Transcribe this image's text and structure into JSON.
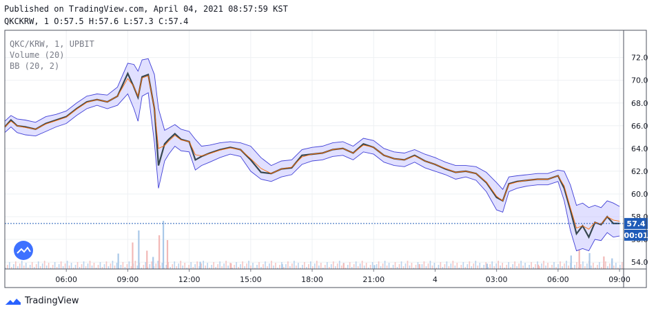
{
  "header": {
    "published_line": "Published on TradingView.com, April 04, 2021 08:57:59 KST",
    "symbol_line": "QKCKRW, 1 O:57.5 H:57.6 L:57.3 C:57.4"
  },
  "legend": [
    "QKC/KRW, 1, UPBIT",
    "Volume (20)",
    "BB (20, 2)"
  ],
  "brand": {
    "name": "TradingView",
    "icon": "tradingview-logo-icon"
  },
  "colors": {
    "up": "#26a69a",
    "down": "#ef5350",
    "candle_up": "#5b9bd5",
    "candle_down": "#c0504d",
    "band_fill": "#c9c6ff",
    "band_line": "#3f3fd6",
    "basis": "#ff6d00",
    "price_line": "#1e5bb8",
    "price_label_bg": "#1e5bb8",
    "grid": "#eef0f3"
  },
  "chart_data": {
    "type": "line",
    "symbol": "QKC/KRW",
    "interval": "1",
    "exchange": "UPBIT",
    "ohlc_last": {
      "open": 57.5,
      "high": 57.6,
      "low": 57.3,
      "close": 57.4
    },
    "current_price_label": "57.4",
    "countdown_label": "00:01",
    "y_ticks": [
      72.0,
      70.0,
      68.0,
      66.0,
      64.0,
      62.0,
      60.0,
      58.0,
      56.0,
      54.0
    ],
    "ylim": [
      53.4,
      74.4
    ],
    "x_ticks": [
      "06:00",
      "09:00",
      "12:00",
      "15:00",
      "18:00",
      "21:00",
      "4",
      "03:00",
      "06:00",
      "09:00"
    ],
    "x_tick_hours": [
      6,
      9,
      12,
      15,
      18,
      21,
      24,
      27,
      30,
      33
    ],
    "xlim": [
      3.0,
      33.2
    ],
    "price_series": {
      "name": "QKC/KRW",
      "t": [
        3.0,
        3.3,
        3.6,
        4.0,
        4.5,
        5.0,
        5.5,
        6.0,
        6.5,
        7.0,
        7.5,
        8.0,
        8.5,
        9.0,
        9.3,
        9.5,
        9.7,
        10.0,
        10.3,
        10.5,
        10.8,
        11.0,
        11.3,
        11.6,
        12.0,
        12.3,
        12.6,
        13.0,
        13.5,
        14.0,
        14.5,
        15.0,
        15.5,
        16.0,
        16.5,
        17.0,
        17.5,
        18.0,
        18.5,
        19.0,
        19.5,
        20.0,
        20.5,
        21.0,
        21.5,
        22.0,
        22.5,
        23.0,
        23.5,
        24.0,
        24.5,
        25.0,
        25.5,
        26.0,
        26.5,
        27.0,
        27.3,
        27.6,
        28.0,
        28.5,
        29.0,
        29.5,
        30.0,
        30.3,
        30.6,
        30.9,
        31.2,
        31.5,
        31.8,
        32.1,
        32.4,
        32.7,
        33.0
      ],
      "v": [
        65.9,
        66.5,
        66.0,
        65.9,
        65.7,
        66.2,
        66.5,
        66.8,
        67.5,
        68.1,
        68.3,
        68.1,
        68.6,
        70.6,
        69.4,
        68.5,
        70.3,
        70.5,
        67.5,
        62.5,
        64.4,
        64.8,
        65.3,
        64.8,
        64.6,
        63.0,
        63.3,
        63.6,
        63.9,
        64.1,
        63.9,
        63.0,
        61.9,
        61.8,
        62.2,
        62.3,
        63.4,
        63.5,
        63.6,
        63.9,
        64.0,
        63.6,
        64.4,
        64.1,
        63.4,
        63.1,
        63.0,
        63.4,
        62.9,
        62.6,
        62.2,
        61.9,
        62.0,
        61.8,
        61.0,
        59.7,
        59.4,
        60.9,
        61.1,
        61.2,
        61.3,
        61.3,
        61.6,
        60.5,
        58.6,
        56.5,
        57.2,
        56.2,
        57.5,
        57.3,
        58.0,
        57.4,
        57.4
      ]
    },
    "bb_upper": [
      66.4,
      66.9,
      66.6,
      66.5,
      66.3,
      66.8,
      67.0,
      67.3,
      68.0,
      68.6,
      68.8,
      68.7,
      69.4,
      71.5,
      71.4,
      70.8,
      71.8,
      71.9,
      70.5,
      67.5,
      65.6,
      65.8,
      66.1,
      65.7,
      65.5,
      64.8,
      64.2,
      64.3,
      64.5,
      64.6,
      64.5,
      64.2,
      63.2,
      62.5,
      62.9,
      63.0,
      63.9,
      64.1,
      64.2,
      64.5,
      64.6,
      64.2,
      64.9,
      64.7,
      64.0,
      63.7,
      63.6,
      63.9,
      63.5,
      63.2,
      62.8,
      62.5,
      62.5,
      62.4,
      61.9,
      61.0,
      60.4,
      61.5,
      61.6,
      61.7,
      61.8,
      61.8,
      62.1,
      62.0,
      60.8,
      59.0,
      59.2,
      58.8,
      59.0,
      58.8,
      59.4,
      59.2,
      58.9
    ],
    "bb_lower": [
      65.4,
      65.9,
      65.4,
      65.2,
      65.1,
      65.5,
      65.9,
      66.2,
      66.9,
      67.5,
      67.8,
      67.5,
      67.8,
      68.8,
      67.5,
      66.4,
      68.6,
      68.9,
      64.5,
      60.5,
      62.9,
      63.5,
      64.2,
      63.8,
      63.7,
      62.1,
      62.5,
      62.8,
      63.2,
      63.5,
      63.3,
      62.0,
      61.3,
      61.1,
      61.5,
      61.7,
      62.6,
      62.9,
      63.0,
      63.3,
      63.4,
      63.0,
      63.7,
      63.5,
      62.8,
      62.5,
      62.4,
      62.8,
      62.3,
      62.0,
      61.7,
      61.3,
      61.5,
      61.2,
      60.2,
      58.6,
      58.4,
      60.2,
      60.5,
      60.7,
      60.8,
      60.8,
      61.1,
      59.4,
      56.8,
      55.0,
      55.2,
      55.0,
      56.0,
      55.9,
      56.6,
      56.2,
      56.3
    ],
    "volume_bars": {
      "name": "Volume",
      "t": [
        8.5,
        9.2,
        9.5,
        9.9,
        10.2,
        10.5,
        10.7,
        10.9,
        12.5,
        14.0,
        16.5,
        19.5,
        21.0,
        23.2,
        26.5,
        29.0,
        30.6,
        31.0,
        31.5,
        32.2,
        32.6
      ],
      "value_frac": [
        0.32,
        0.55,
        0.8,
        0.38,
        0.25,
        0.7,
        1.0,
        0.6,
        0.15,
        0.12,
        0.1,
        0.12,
        0.08,
        0.1,
        0.11,
        0.09,
        0.28,
        0.4,
        0.33,
        0.26,
        0.22
      ]
    }
  }
}
